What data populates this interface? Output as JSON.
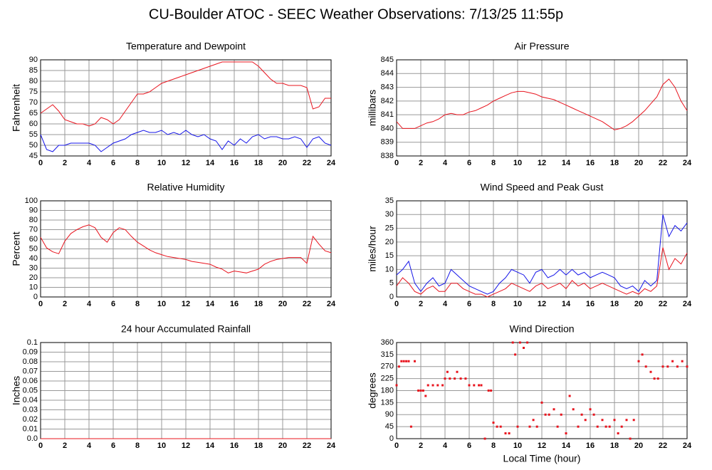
{
  "title": "CU-Boulder ATOC - SEEC Weather Observations: 7/13/25 11:55p",
  "chart_data": [
    {
      "type": "line",
      "title": "Temperature and Dewpoint",
      "ylabel": "Fahrenheit",
      "grid": true,
      "xlim": [
        0,
        24
      ],
      "xticks": [
        0,
        2,
        4,
        6,
        8,
        10,
        12,
        14,
        16,
        18,
        20,
        22,
        24
      ],
      "ylim": [
        45,
        90
      ],
      "yticks": [
        45,
        50,
        55,
        60,
        65,
        70,
        75,
        80,
        85,
        90
      ],
      "x": [
        0,
        0.5,
        1,
        1.5,
        2,
        2.5,
        3,
        3.5,
        4,
        4.5,
        5,
        5.5,
        6,
        6.5,
        7,
        7.5,
        8,
        8.5,
        9,
        9.5,
        10,
        10.5,
        11,
        11.5,
        12,
        12.5,
        13,
        13.5,
        14,
        14.5,
        15,
        15.5,
        16,
        16.5,
        17,
        17.5,
        18,
        18.5,
        19,
        19.5,
        20,
        20.5,
        21,
        21.5,
        22,
        22.5,
        23,
        23.5,
        24
      ],
      "series": [
        {
          "color": "#e8141e",
          "values": [
            65,
            67,
            69,
            66,
            62,
            61,
            60,
            60,
            59,
            60,
            63,
            62,
            60,
            62,
            66,
            70,
            74,
            74,
            75,
            77,
            79,
            80,
            81,
            82,
            83,
            84,
            85,
            86,
            87,
            88,
            89,
            89,
            89,
            89,
            89,
            89,
            87,
            84,
            81,
            79,
            79,
            78,
            78,
            78,
            77,
            67,
            68,
            72,
            72
          ]
        },
        {
          "color": "#1414e8",
          "values": [
            55,
            48,
            47,
            50,
            50,
            51,
            51,
            51,
            51,
            50,
            47,
            49,
            51,
            52,
            53,
            55,
            56,
            57,
            56,
            56,
            57,
            55,
            56,
            55,
            57,
            55,
            54,
            55,
            53,
            52,
            48,
            52,
            50,
            53,
            51,
            54,
            55,
            53,
            54,
            54,
            53,
            53,
            54,
            53,
            49,
            53,
            54,
            51,
            50
          ]
        }
      ]
    },
    {
      "type": "line",
      "title": "Air Pressure",
      "ylabel": "millibars",
      "grid": true,
      "xlim": [
        0,
        24
      ],
      "xticks": [
        0,
        2,
        4,
        6,
        8,
        10,
        12,
        14,
        16,
        18,
        20,
        22,
        24
      ],
      "ylim": [
        838,
        845
      ],
      "yticks": [
        838,
        839,
        840,
        841,
        842,
        843,
        844,
        845
      ],
      "x": [
        0,
        0.5,
        1,
        1.5,
        2,
        2.5,
        3,
        3.5,
        4,
        4.5,
        5,
        5.5,
        6,
        6.5,
        7,
        7.5,
        8,
        8.5,
        9,
        9.5,
        10,
        10.5,
        11,
        11.5,
        12,
        12.5,
        13,
        13.5,
        14,
        14.5,
        15,
        15.5,
        16,
        16.5,
        17,
        17.5,
        18,
        18.5,
        19,
        19.5,
        20,
        20.5,
        21,
        21.5,
        22,
        22.5,
        23,
        23.5,
        24
      ],
      "series": [
        {
          "color": "#e8141e",
          "values": [
            840.5,
            840,
            840,
            840,
            840.2,
            840.4,
            840.5,
            840.7,
            841,
            841.1,
            841,
            841,
            841.2,
            841.3,
            841.5,
            841.7,
            842,
            842.2,
            842.4,
            842.6,
            842.7,
            842.7,
            842.6,
            842.5,
            842.3,
            842.2,
            842.1,
            841.9,
            841.7,
            841.5,
            841.3,
            841.1,
            840.9,
            840.7,
            840.5,
            840.2,
            839.9,
            840,
            840.2,
            840.5,
            840.9,
            841.3,
            841.8,
            842.3,
            843.2,
            843.6,
            843,
            842,
            841.3
          ]
        }
      ]
    },
    {
      "type": "line",
      "title": "Relative Humidity",
      "ylabel": "Percent",
      "grid": true,
      "xlim": [
        0,
        24
      ],
      "xticks": [
        0,
        2,
        4,
        6,
        8,
        10,
        12,
        14,
        16,
        18,
        20,
        22,
        24
      ],
      "ylim": [
        0,
        100
      ],
      "yticks": [
        0,
        10,
        20,
        30,
        40,
        50,
        60,
        70,
        80,
        90,
        100
      ],
      "x": [
        0,
        0.5,
        1,
        1.5,
        2,
        2.5,
        3,
        3.5,
        4,
        4.5,
        5,
        5.5,
        6,
        6.5,
        7,
        7.5,
        8,
        8.5,
        9,
        9.5,
        10,
        10.5,
        11,
        11.5,
        12,
        12.5,
        13,
        13.5,
        14,
        14.5,
        15,
        15.5,
        16,
        16.5,
        17,
        17.5,
        18,
        18.5,
        19,
        19.5,
        20,
        20.5,
        21,
        21.5,
        22,
        22.5,
        23,
        23.5,
        24
      ],
      "series": [
        {
          "color": "#e8141e",
          "values": [
            62,
            51,
            47,
            45,
            58,
            66,
            70,
            73,
            75,
            72,
            62,
            57,
            67,
            72,
            70,
            63,
            57,
            53,
            49,
            46,
            44,
            42,
            41,
            40,
            39,
            37,
            36,
            35,
            34,
            31,
            29,
            25,
            27,
            26,
            25,
            27,
            29,
            34,
            37,
            39,
            40,
            41,
            41,
            41,
            35,
            63,
            55,
            48,
            46
          ]
        }
      ]
    },
    {
      "type": "line",
      "title": "Wind Speed and Peak Gust",
      "ylabel": "miles/hour",
      "grid": true,
      "xlim": [
        0,
        24
      ],
      "xticks": [
        0,
        2,
        4,
        6,
        8,
        10,
        12,
        14,
        16,
        18,
        20,
        22,
        24
      ],
      "ylim": [
        0,
        35
      ],
      "yticks": [
        0,
        5,
        10,
        15,
        20,
        25,
        30,
        35
      ],
      "x": [
        0,
        0.5,
        1,
        1.5,
        2,
        2.5,
        3,
        3.5,
        4,
        4.5,
        5,
        5.5,
        6,
        6.5,
        7,
        7.5,
        8,
        8.5,
        9,
        9.5,
        10,
        10.5,
        11,
        11.5,
        12,
        12.5,
        13,
        13.5,
        14,
        14.5,
        15,
        15.5,
        16,
        16.5,
        17,
        17.5,
        18,
        18.5,
        19,
        19.5,
        20,
        20.5,
        21,
        21.5,
        22,
        22.5,
        23,
        23.5,
        24
      ],
      "series": [
        {
          "color": "#1414e8",
          "values": [
            8,
            10,
            13,
            5,
            2,
            5,
            7,
            4,
            5,
            10,
            8,
            6,
            4,
            3,
            2,
            1,
            2,
            5,
            7,
            10,
            9,
            8,
            5,
            9,
            10,
            7,
            8,
            10,
            8,
            10,
            8,
            9,
            7,
            8,
            9,
            8,
            7,
            4,
            3,
            4,
            2,
            6,
            4,
            6,
            30,
            22,
            26,
            24,
            27
          ]
        },
        {
          "color": "#e8141e",
          "values": [
            4,
            7,
            5,
            2,
            1,
            3,
            4,
            2,
            2,
            5,
            5,
            3,
            2,
            1,
            1,
            0,
            1,
            2,
            3,
            5,
            4,
            3,
            2,
            4,
            5,
            3,
            4,
            5,
            3,
            6,
            4,
            5,
            3,
            4,
            5,
            4,
            3,
            2,
            1,
            2,
            1,
            3,
            2,
            4,
            18,
            10,
            14,
            12,
            16
          ]
        }
      ]
    },
    {
      "type": "line",
      "title": "24 hour Accumulated Rainfall",
      "ylabel": "Inches",
      "grid": true,
      "xlim": [
        0,
        24
      ],
      "xticks": [
        0,
        2,
        4,
        6,
        8,
        10,
        12,
        14,
        16,
        18,
        20,
        22,
        24
      ],
      "ylim": [
        0,
        0.1
      ],
      "yticks": [
        {
          "value": 0,
          "label": "0.0"
        },
        0.01,
        0.02,
        0.03,
        0.04,
        0.05,
        0.06,
        0.07,
        0.08,
        0.09,
        0.1
      ],
      "x": [
        0,
        24
      ],
      "series": [
        {
          "color": "#e8141e",
          "values": [
            0,
            0
          ]
        }
      ]
    },
    {
      "type": "scatter",
      "title": "Wind Direction",
      "ylabel": "degrees",
      "xlabel": "Local Time (hour)",
      "grid": true,
      "xlim": [
        0,
        24
      ],
      "xticks": [
        0,
        2,
        4,
        6,
        8,
        10,
        12,
        14,
        16,
        18,
        20,
        22,
        24
      ],
      "ylim": [
        0,
        360
      ],
      "yticks": [
        0,
        45,
        90,
        135,
        180,
        225,
        270,
        315,
        360
      ],
      "x": [
        0,
        0.2,
        0.4,
        0.6,
        0.8,
        1,
        1.2,
        1.5,
        1.8,
        2,
        2.2,
        2.4,
        2.6,
        3,
        3.4,
        3.8,
        4,
        4.2,
        4.4,
        4.8,
        5,
        5.3,
        5.7,
        6,
        6.4,
        6.8,
        7,
        7.3,
        7.6,
        7.8,
        8,
        8.3,
        8.6,
        9,
        9.3,
        9.6,
        9.8,
        10,
        10.2,
        10.5,
        10.8,
        11,
        11.3,
        11.6,
        12,
        12.3,
        12.6,
        13,
        13.3,
        13.6,
        14,
        14.3,
        14.6,
        15,
        15.3,
        15.6,
        16,
        16.3,
        16.6,
        17,
        17.3,
        17.6,
        18,
        18.3,
        18.6,
        19,
        19.3,
        19.6,
        20,
        20.3,
        20.6,
        21,
        21.3,
        21.6,
        22,
        22.4,
        22.8,
        23.2,
        23.6,
        24
      ],
      "series": [
        {
          "color": "#e8141e",
          "values": [
            200,
            270,
            290,
            290,
            290,
            290,
            45,
            290,
            180,
            180,
            180,
            160,
            200,
            200,
            200,
            200,
            225,
            250,
            225,
            225,
            250,
            225,
            225,
            200,
            200,
            200,
            200,
            0,
            180,
            180,
            60,
            45,
            45,
            20,
            20,
            360,
            315,
            45,
            360,
            340,
            360,
            45,
            70,
            45,
            135,
            90,
            90,
            110,
            45,
            90,
            20,
            160,
            110,
            45,
            90,
            70,
            110,
            90,
            45,
            70,
            45,
            45,
            70,
            20,
            45,
            70,
            0,
            70,
            290,
            315,
            270,
            250,
            225,
            225,
            270,
            270,
            290,
            270,
            290,
            270
          ]
        }
      ]
    }
  ]
}
